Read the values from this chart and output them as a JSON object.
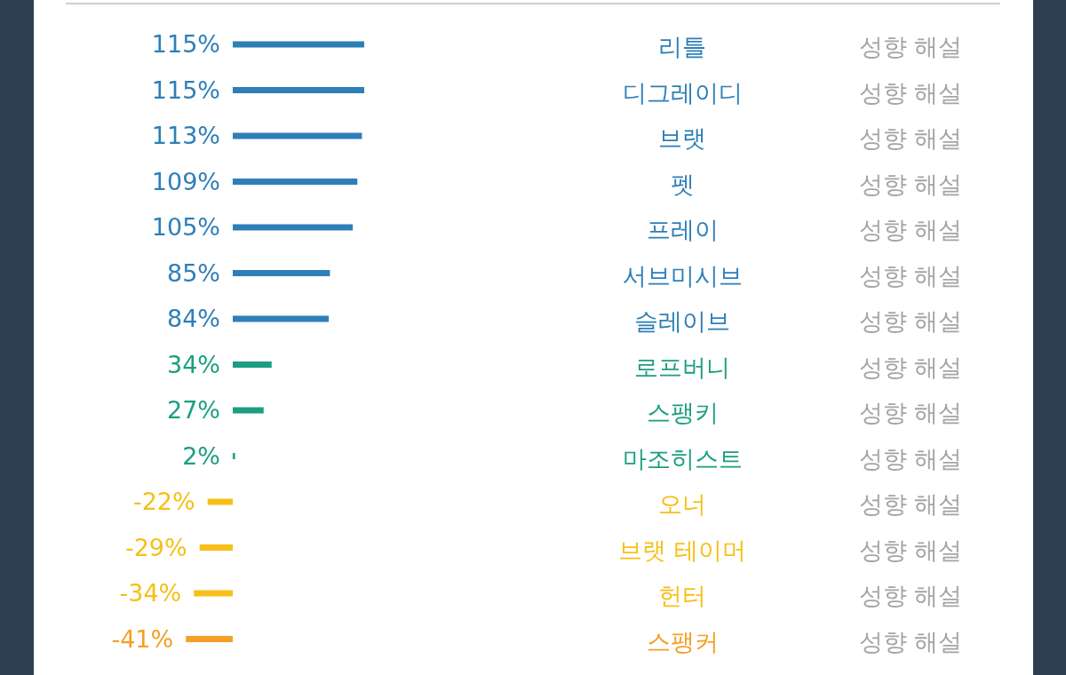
{
  "chart_data": {
    "type": "bar",
    "orientation": "horizontal",
    "tick_labels": false,
    "categories": [
      "리틀",
      "디그레이디",
      "브랫",
      "펫",
      "프레이",
      "서브미시브",
      "슬레이브",
      "로프버니",
      "스팽키",
      "마조히스트",
      "오너",
      "브랫 테이머",
      "헌터",
      "스팽커"
    ],
    "values": [
      115,
      115,
      113,
      109,
      105,
      85,
      84,
      34,
      27,
      2,
      -22,
      -29,
      -34,
      -41
    ],
    "value_labels": [
      "115%",
      "115%",
      "113%",
      "109%",
      "105%",
      "85%",
      "84%",
      "34%",
      "27%",
      "2%",
      "-22%",
      "-29%",
      "-34%",
      "-41%"
    ],
    "colors": [
      "#2e7fb8",
      "#2e7fb8",
      "#2e7fb8",
      "#2e7fb8",
      "#2e7fb8",
      "#2e7fb8",
      "#2e7fb8",
      "#1d9e80",
      "#1d9e80",
      "#1d9e80",
      "#f7bf18",
      "#f7bf18",
      "#f7bf18",
      "#f4a024"
    ],
    "annotations": [
      "성향 해설",
      "성향 해설",
      "성향 해설",
      "성향 해설",
      "성향 해설",
      "성향 해설",
      "성향 해설",
      "성향 해설",
      "성향 해설",
      "성향 해설",
      "성향 해설",
      "성향 해설",
      "성향 해설",
      "성향 해설"
    ]
  }
}
